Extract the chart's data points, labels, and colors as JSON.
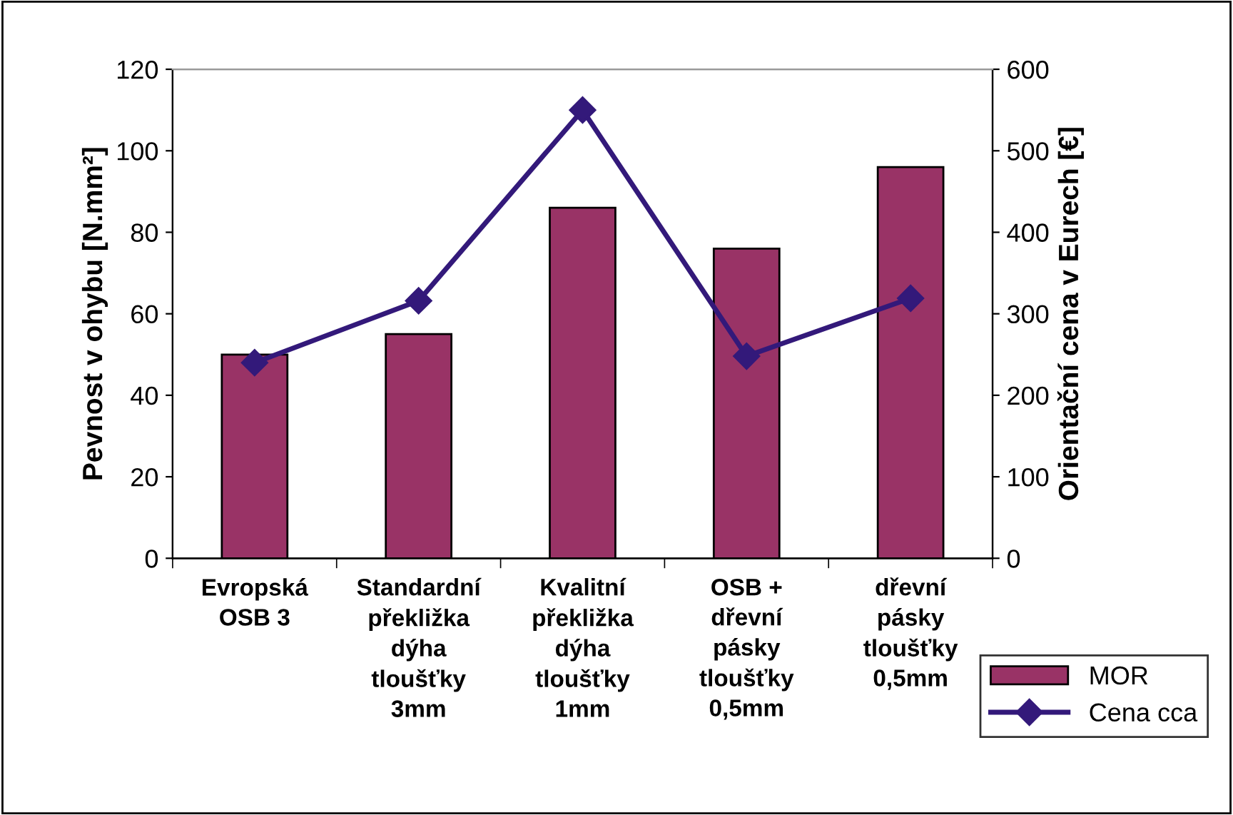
{
  "chart_data": {
    "type": "bar",
    "ylabel": "Pevnost v ohybu [N.mm²]",
    "y2label": "Orientační cena v Eurech [€]",
    "categories": [
      "Evropská\nOSB 3",
      "Standardní\npřekližka\ndýha\ntloušťky\n3mm",
      "Kvalitní\npřekližka\ndýha\ntloušťky\n1mm",
      "OSB +\ndřevní\npásky\ntloušťky\n0,5mm",
      "dřevní\npásky\ntloušťky\n0,5mm"
    ],
    "series": [
      {
        "name": "MOR",
        "color": "#993366",
        "values": [
          50,
          55,
          86,
          76,
          96
        ]
      },
      {
        "name": "Cena cca",
        "type": "line",
        "axis": "y2",
        "color": "#33197a",
        "marker": "diamond",
        "values": [
          240,
          316,
          550,
          248,
          319
        ]
      }
    ],
    "ylim": [
      0,
      120
    ],
    "yticks": [
      0,
      20,
      40,
      60,
      80,
      100,
      120
    ],
    "y2lim": [
      0,
      600
    ],
    "y2ticks": [
      0,
      100,
      200,
      300,
      400,
      500,
      600
    ],
    "grid": false,
    "legend": "bottom right"
  }
}
